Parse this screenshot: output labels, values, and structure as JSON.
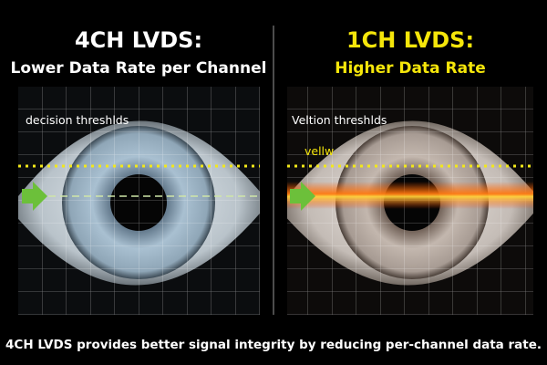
{
  "panels": [
    {
      "title": "4CH LVDS:",
      "subtitle": "Lower Data Rate per Channel",
      "label": "decision threshlds"
    },
    {
      "title": "1CH LVDS:",
      "subtitle": "Higher Data Rate",
      "label": "Veltion threshlds",
      "note": "vellw"
    }
  ],
  "caption": "4CH LVDS provides better signal integrity by reducing per-channel data rate."
}
